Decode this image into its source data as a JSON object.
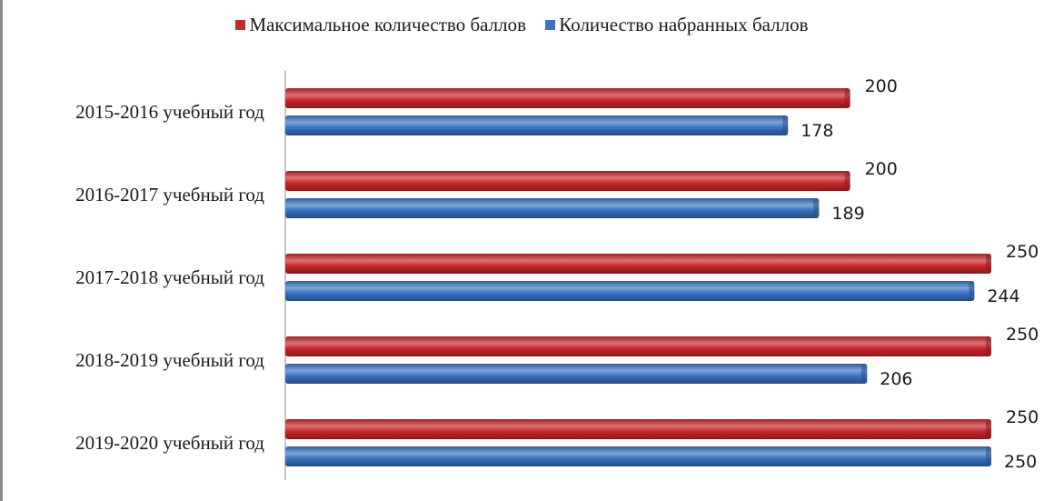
{
  "chart_data": {
    "type": "bar",
    "orientation": "horizontal",
    "categories": [
      "2015-2016 учебный год",
      "2016-2017 учебный год",
      "2017-2018 учебный год",
      "2018-2019 учебный год",
      "2019-2020 учебный год"
    ],
    "series": [
      {
        "name": "Максимальное количество баллов",
        "color": "#c8282c",
        "values": [
          200,
          200,
          250,
          250,
          250
        ]
      },
      {
        "name": "Количество набранных баллов",
        "color": "#3b73c4",
        "values": [
          178,
          189,
          244,
          206,
          250
        ]
      }
    ],
    "xlim": [
      0,
      250
    ],
    "grid": false,
    "legend_position": "top-center"
  }
}
